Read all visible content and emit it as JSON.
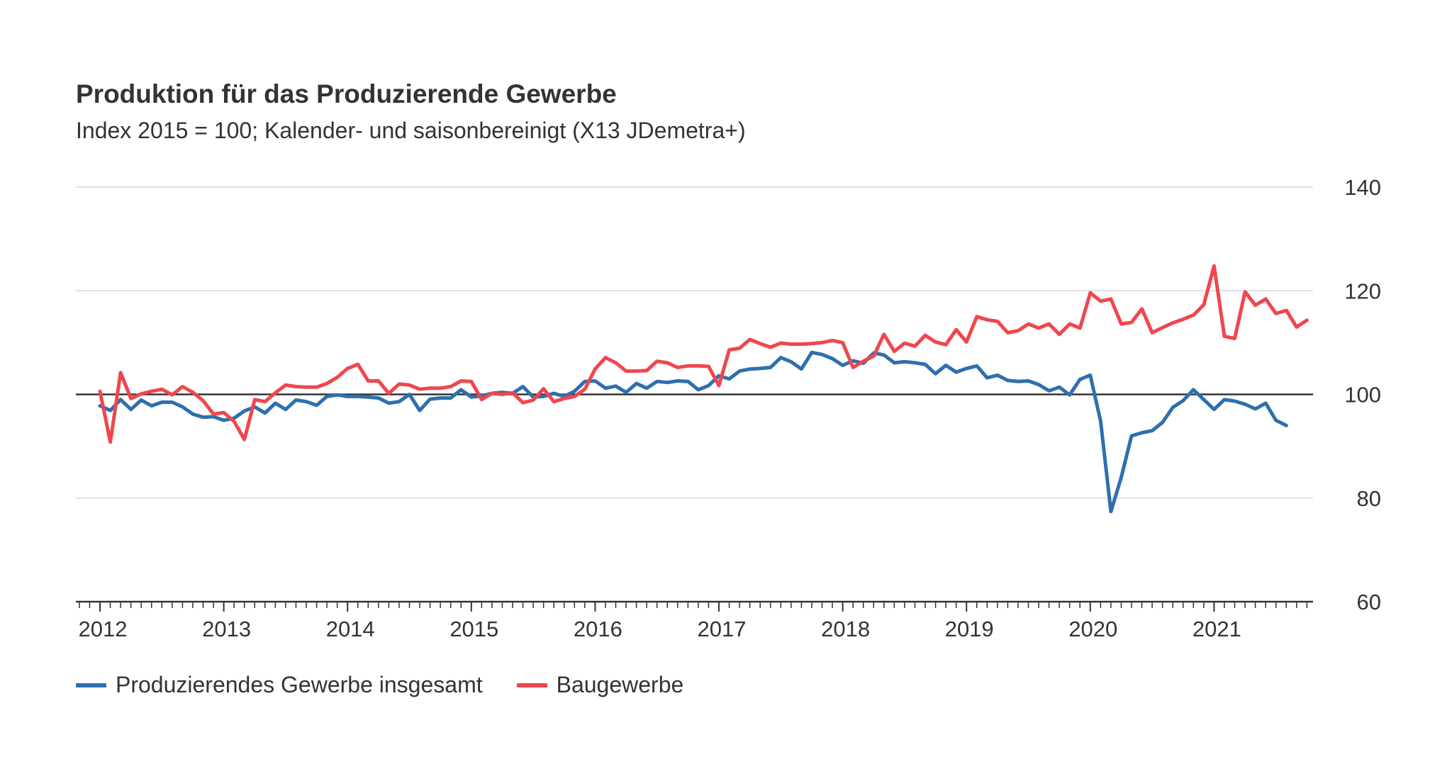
{
  "chart_data": {
    "type": "line",
    "title": "Produktion für das Produzierende Gewerbe",
    "subtitle": "Index 2015 = 100; Kalender- und saisonbereinigt (X13 JDemetra+)",
    "xlabel": "",
    "ylabel": "",
    "x_start": "2012-01",
    "x_tick_labels": [
      "2012",
      "2013",
      "2014",
      "2015",
      "2016",
      "2017",
      "2018",
      "2019",
      "2020",
      "2021"
    ],
    "ylim": [
      60,
      140
    ],
    "y_ticks": [
      60,
      80,
      100,
      120,
      140
    ],
    "reference_line": 100,
    "grid": true,
    "legend_position": "bottom-left",
    "series": [
      {
        "name": "Produzierendes Gewerbe insgesamt",
        "color": "#2e6fae",
        "values": [
          97.8,
          96.9,
          99.0,
          97.1,
          98.9,
          97.8,
          98.5,
          98.5,
          97.6,
          96.2,
          95.6,
          95.7,
          95.0,
          95.4,
          96.8,
          97.6,
          96.4,
          98.3,
          97.1,
          98.9,
          98.6,
          97.9,
          99.6,
          99.9,
          99.6,
          99.6,
          99.5,
          99.3,
          98.3,
          98.6,
          100.0,
          96.9,
          99.1,
          99.3,
          99.3,
          100.9,
          99.5,
          99.7,
          100.2,
          100.4,
          100.2,
          101.5,
          99.5,
          99.6,
          100.2,
          99.6,
          100.6,
          102.5,
          102.6,
          101.2,
          101.6,
          100.4,
          102.1,
          101.2,
          102.5,
          102.3,
          102.6,
          102.5,
          100.9,
          101.7,
          103.6,
          103.0,
          104.5,
          104.9,
          105.0,
          105.2,
          107.1,
          106.3,
          104.9,
          108.1,
          107.7,
          106.9,
          105.6,
          106.5,
          106.0,
          108.0,
          107.6,
          106.1,
          106.3,
          106.1,
          105.8,
          104.0,
          105.6,
          104.3,
          105.0,
          105.5,
          103.2,
          103.7,
          102.7,
          102.5,
          102.6,
          101.9,
          100.7,
          101.4,
          99.9,
          102.9,
          103.7,
          94.8,
          77.4,
          84.0,
          92.0,
          92.6,
          93.0,
          94.6,
          97.5,
          98.8,
          100.9,
          99.0,
          97.1,
          99.0,
          98.7,
          98.1,
          97.2,
          98.3,
          95.0,
          94.0
        ]
      },
      {
        "name": "Baugewerbe",
        "color": "#f0464d",
        "values": [
          100.6,
          90.8,
          104.2,
          99.2,
          100.1,
          100.6,
          101.0,
          99.9,
          101.5,
          100.4,
          98.8,
          96.2,
          96.5,
          94.8,
          91.3,
          99.0,
          98.6,
          100.3,
          101.8,
          101.5,
          101.4,
          101.4,
          102.1,
          103.3,
          105.0,
          105.8,
          102.6,
          102.6,
          100.2,
          102.0,
          101.8,
          101.0,
          101.2,
          101.2,
          101.5,
          102.6,
          102.5,
          99.0,
          100.2,
          100.0,
          100.3,
          98.4,
          98.9,
          101.1,
          98.6,
          99.2,
          99.6,
          101.0,
          104.9,
          107.1,
          106.1,
          104.5,
          104.5,
          104.6,
          106.4,
          106.1,
          105.2,
          105.5,
          105.5,
          105.4,
          101.7,
          108.6,
          108.9,
          110.6,
          109.8,
          109.1,
          109.9,
          109.7,
          109.7,
          109.8,
          110.0,
          110.4,
          110.0,
          105.2,
          106.4,
          107.4,
          111.6,
          108.3,
          109.9,
          109.3,
          111.4,
          110.1,
          109.6,
          112.5,
          110.1,
          115.0,
          114.4,
          114.1,
          111.9,
          112.3,
          113.6,
          112.8,
          113.6,
          111.6,
          113.6,
          112.8,
          119.6,
          118.0,
          118.4,
          113.6,
          113.9,
          116.5,
          111.9,
          112.9,
          113.8,
          114.5,
          115.3,
          117.3,
          124.8,
          111.2,
          110.8,
          119.8,
          117.2,
          118.4,
          115.6,
          116.2,
          113.0,
          114.3
        ]
      }
    ]
  }
}
